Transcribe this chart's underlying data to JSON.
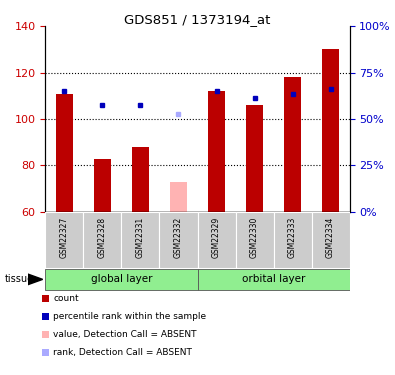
{
  "title": "GDS851 / 1373194_at",
  "samples": [
    "GSM22327",
    "GSM22328",
    "GSM22331",
    "GSM22332",
    "GSM22329",
    "GSM22330",
    "GSM22333",
    "GSM22334"
  ],
  "bar_values": [
    111,
    83,
    88,
    73,
    112,
    106,
    118,
    130
  ],
  "bar_colors": [
    "#bb0000",
    "#bb0000",
    "#bb0000",
    "#ffb3b3",
    "#bb0000",
    "#bb0000",
    "#bb0000",
    "#bb0000"
  ],
  "rank_values": [
    112,
    106,
    106,
    102,
    112,
    109,
    111,
    113
  ],
  "rank_colors": [
    "#0000bb",
    "#0000bb",
    "#0000bb",
    "#aaaaff",
    "#0000bb",
    "#0000bb",
    "#0000bb",
    "#0000bb"
  ],
  "ylim_left": [
    60,
    140
  ],
  "ylim_right": [
    0,
    100
  ],
  "yticks_left": [
    60,
    80,
    100,
    120,
    140
  ],
  "yticks_right": [
    0,
    25,
    50,
    75,
    100
  ],
  "ytick_labels_right": [
    "0%",
    "25%",
    "50%",
    "75%",
    "100%"
  ],
  "ybase": 60,
  "bar_width": 0.45,
  "bg_color": "#ffffff",
  "left_axis_color": "#cc0000",
  "right_axis_color": "#0000cc",
  "grid_yticks": [
    80,
    100,
    120
  ],
  "group1_label": "global layer",
  "group2_label": "orbital layer",
  "group_color": "#90ee90",
  "sample_bg_color": "#cccccc",
  "legend_items": [
    {
      "color": "#bb0000",
      "label": "count",
      "marker": "s"
    },
    {
      "color": "#0000bb",
      "label": "percentile rank within the sample",
      "marker": "s"
    },
    {
      "color": "#ffb3b3",
      "label": "value, Detection Call = ABSENT",
      "marker": "s"
    },
    {
      "color": "#aaaaff",
      "label": "rank, Detection Call = ABSENT",
      "marker": "s"
    }
  ]
}
